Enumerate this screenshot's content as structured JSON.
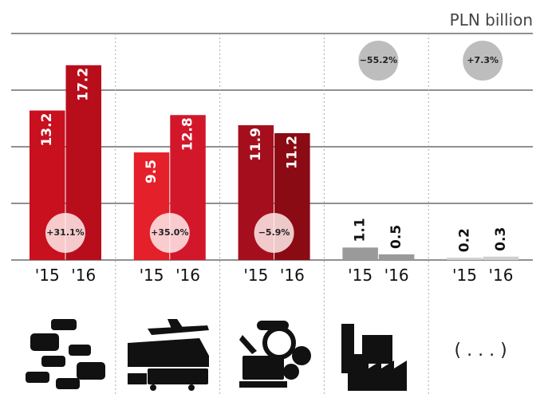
{
  "chart_data": {
    "type": "bar",
    "unit_label": "PLN billion",
    "categories": [
      null,
      null,
      null,
      null,
      "( . . . )"
    ],
    "series": [
      {
        "name": "'15",
        "values": [
          13.2,
          9.5,
          11.9,
          1.1,
          0.2
        ],
        "colors": [
          "#c8101f",
          "#e4202a",
          "#a50f1d",
          "#9a9a9a",
          "#cfcfcf"
        ]
      },
      {
        "name": "'16",
        "values": [
          17.2,
          12.8,
          11.2,
          0.5,
          0.3
        ],
        "colors": [
          "#b80e1c",
          "#d3172a",
          "#8a0b13",
          "#9a9a9a",
          "#cfcfcf"
        ]
      }
    ],
    "changes": [
      "+31.1%",
      "+35.0%",
      "−5.9%",
      "−55.2%",
      "+7.3%"
    ],
    "ylim": [
      0,
      20
    ],
    "yticks": [
      5,
      10,
      15,
      20
    ],
    "grid": true
  }
}
